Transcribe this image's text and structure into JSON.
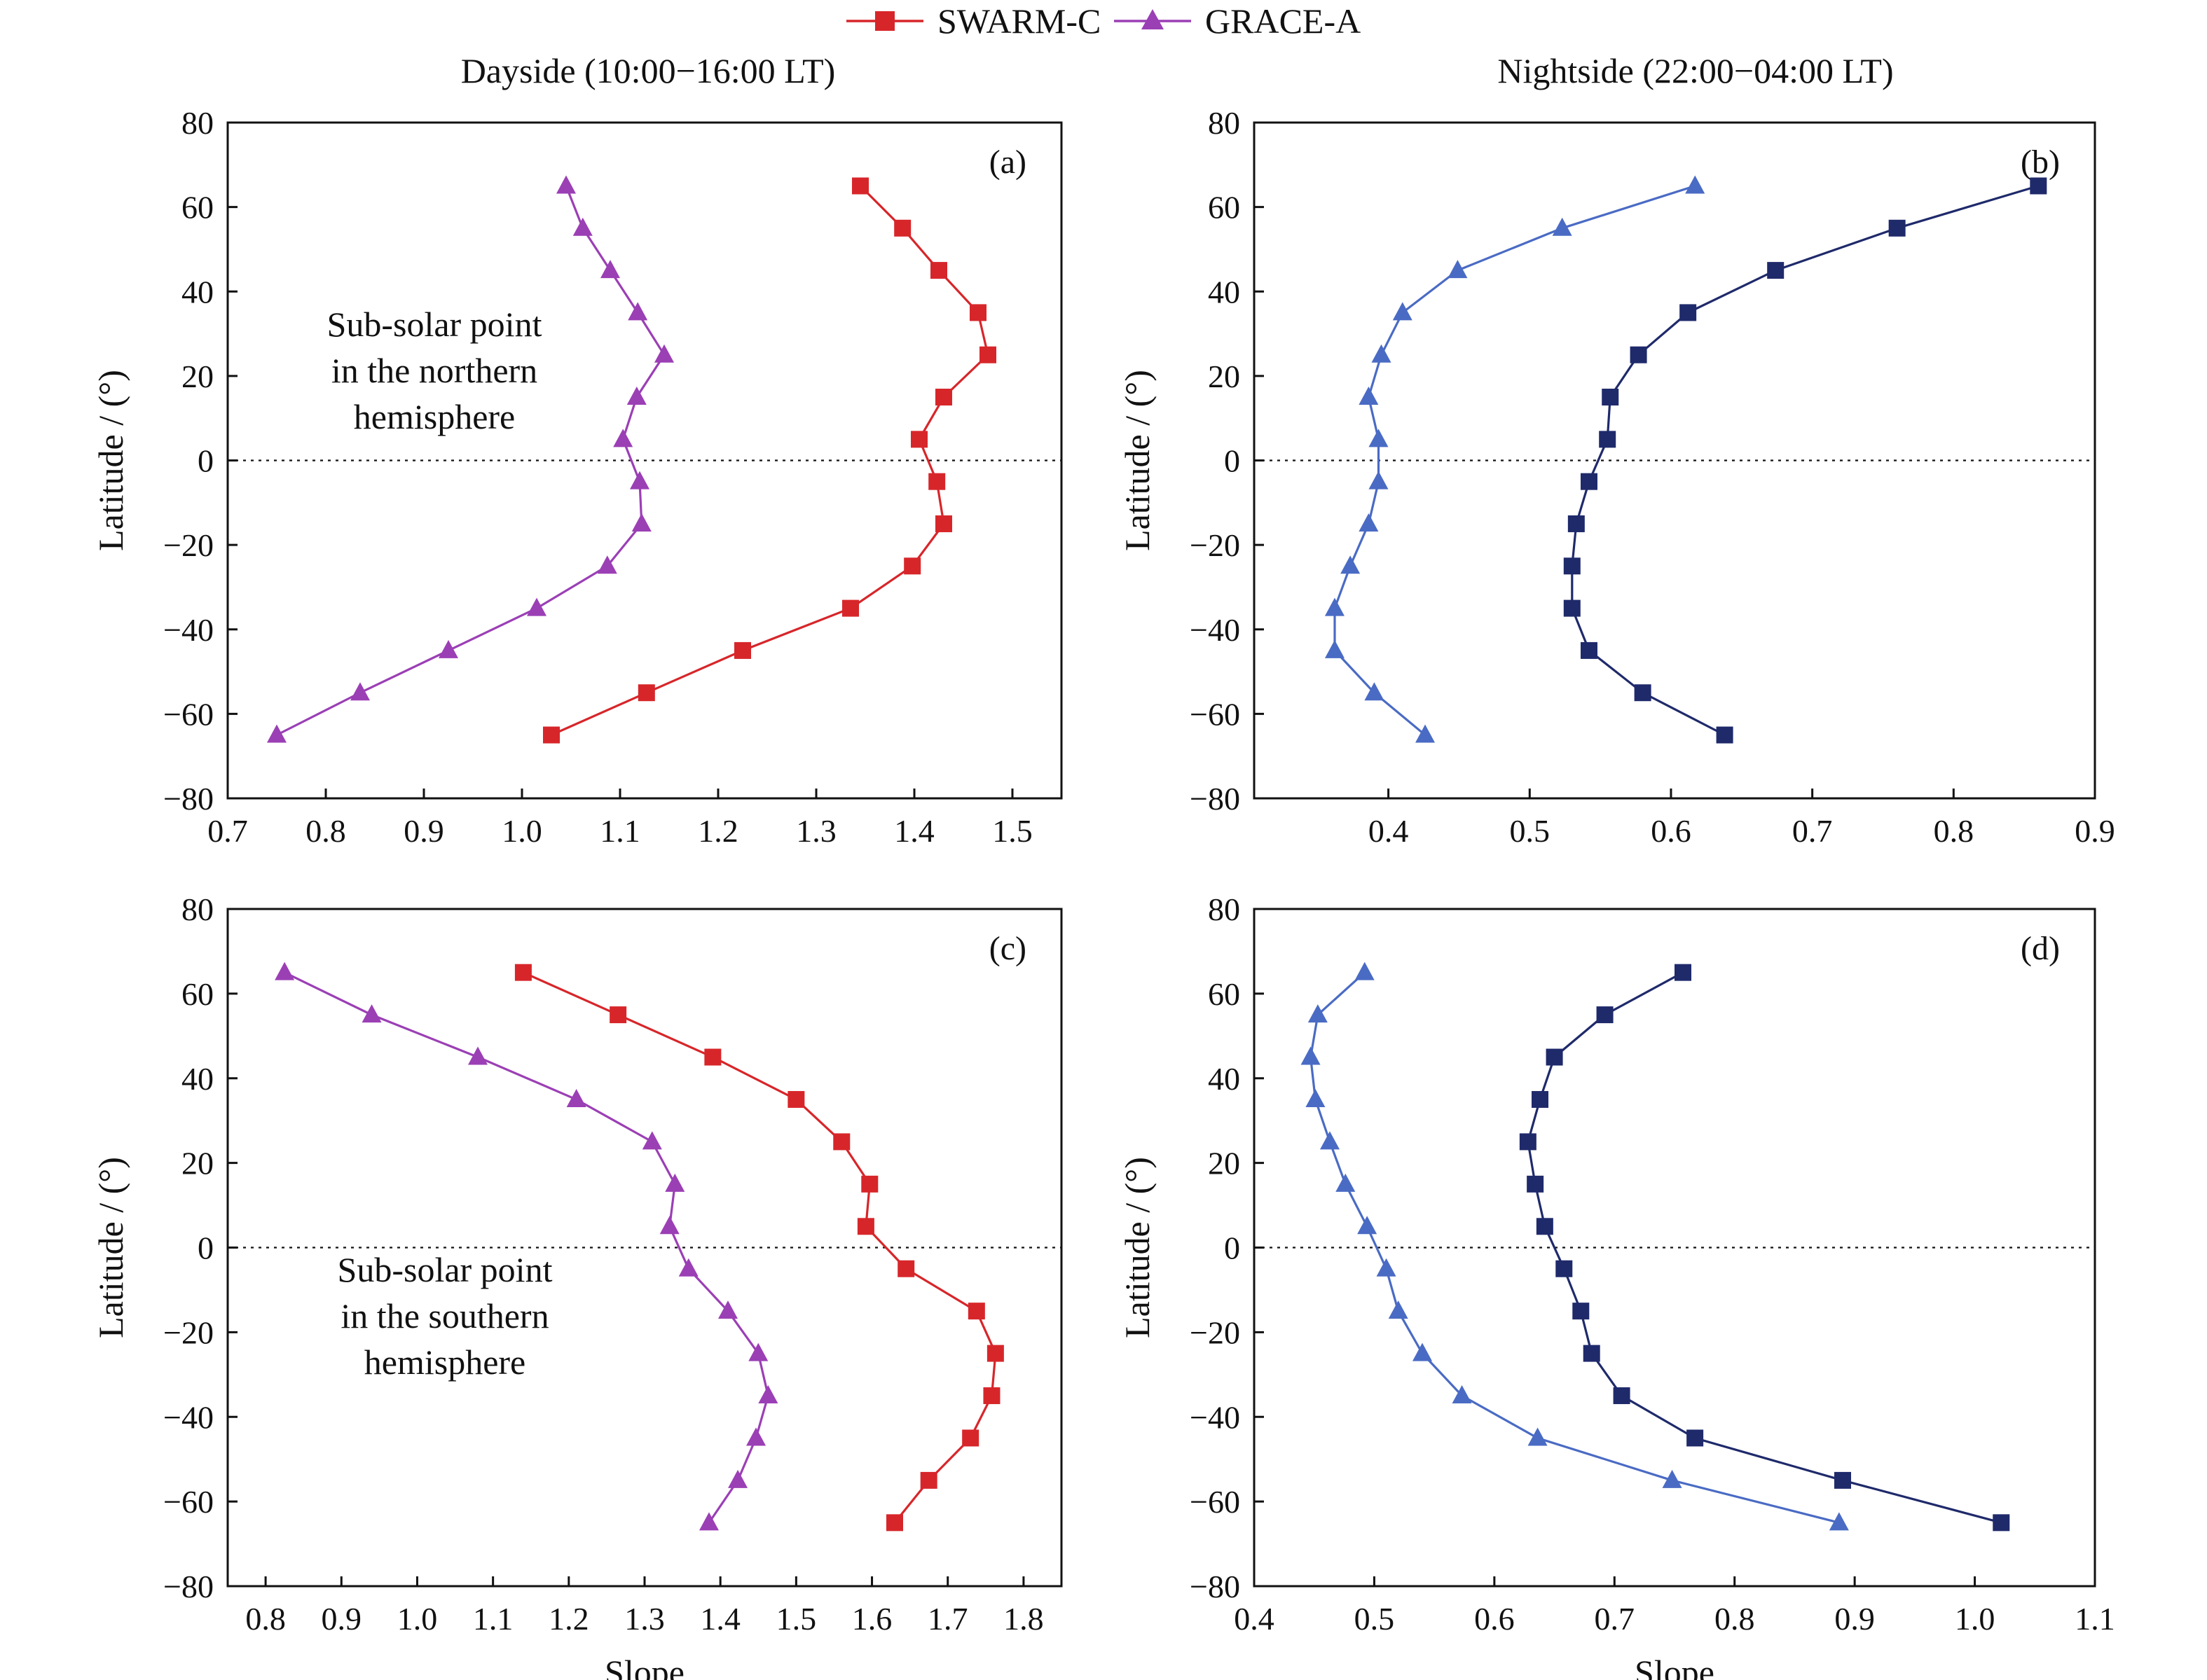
{
  "legend": {
    "items": [
      {
        "label": "SWARM-C",
        "marker": "square",
        "color": "#d7262a"
      },
      {
        "label": "GRACE-A",
        "marker": "triangle",
        "color": "#9b3fb5"
      }
    ]
  },
  "columns": {
    "left": "Dayside (10:00−16:00 LT)",
    "right": "Nightside (22:00−04:00 LT)"
  },
  "chart_data": [
    {
      "id": "a",
      "type": "line",
      "panel_label": "(a)",
      "xlabel": "",
      "ylabel": "Latitude / (°)",
      "xlim": [
        0.7,
        1.55
      ],
      "ylim": [
        -80,
        80
      ],
      "xticks": [
        0.7,
        0.8,
        0.9,
        1.0,
        1.1,
        1.2,
        1.3,
        1.4,
        1.5
      ],
      "xtick_labels": [
        "0.7",
        "0.8",
        "0.9",
        "1.0",
        "1.1",
        "1.2",
        "1.3",
        "1.4",
        "1.5"
      ],
      "yticks": [
        -80,
        -60,
        -40,
        -20,
        0,
        20,
        40,
        60,
        80
      ],
      "ytick_labels": [
        "−80",
        "−60",
        "−40",
        "−20",
        "0",
        "20",
        "40",
        "60",
        "80"
      ],
      "zero_line": true,
      "annotation": [
        "Sub-solar point",
        "in the northern",
        "hemisphere"
      ],
      "series": [
        {
          "label": "SWARM-C",
          "marker": "square",
          "color": "#d7262a",
          "x": [
            1.345,
            1.388,
            1.425,
            1.465,
            1.475,
            1.43,
            1.405,
            1.423,
            1.43,
            1.398,
            1.335,
            1.225,
            1.127,
            1.03
          ],
          "y": [
            65,
            55,
            45,
            35,
            25,
            15,
            5,
            -5,
            -15,
            -25,
            -35,
            -45,
            -55,
            -65
          ]
        },
        {
          "label": "GRACE-A",
          "marker": "triangle",
          "color": "#9b3fb5",
          "x": [
            1.045,
            1.062,
            1.09,
            1.118,
            1.145,
            1.117,
            1.103,
            1.12,
            1.122,
            1.087,
            1.015,
            0.925,
            0.835,
            0.75
          ],
          "y": [
            65,
            55,
            45,
            35,
            25,
            15,
            5,
            -5,
            -15,
            -25,
            -35,
            -45,
            -55,
            -65
          ]
        }
      ]
    },
    {
      "id": "b",
      "type": "line",
      "panel_label": "(b)",
      "xlabel": "",
      "ylabel": "Latitude / (°)",
      "xlim": [
        0.305,
        0.9
      ],
      "ylim": [
        -80,
        80
      ],
      "xticks": [
        0.4,
        0.5,
        0.6,
        0.7,
        0.8,
        0.9
      ],
      "xtick_labels": [
        "0.4",
        "0.5",
        "0.6",
        "0.7",
        "0.8",
        "0.9"
      ],
      "yticks": [
        -80,
        -60,
        -40,
        -20,
        0,
        20,
        40,
        60,
        80
      ],
      "ytick_labels": [
        "−80",
        "−60",
        "−40",
        "−20",
        "0",
        "20",
        "40",
        "60",
        "80"
      ],
      "zero_line": true,
      "series": [
        {
          "label": "SWARM-C",
          "marker": "square",
          "color": "#1f2a6b",
          "x": [
            0.86,
            0.76,
            0.674,
            0.612,
            0.577,
            0.557,
            0.555,
            0.542,
            0.533,
            0.53,
            0.53,
            0.542,
            0.58,
            0.638
          ],
          "y": [
            65,
            55,
            45,
            35,
            25,
            15,
            5,
            -5,
            -15,
            -25,
            -35,
            -45,
            -55,
            -65
          ]
        },
        {
          "label": "GRACE-A",
          "marker": "triangle",
          "color": "#4a6bc4",
          "x": [
            0.617,
            0.523,
            0.449,
            0.41,
            0.395,
            0.386,
            0.393,
            0.393,
            0.386,
            0.373,
            0.362,
            0.362,
            0.39,
            0.426
          ],
          "y": [
            65,
            55,
            45,
            35,
            25,
            15,
            5,
            -5,
            -15,
            -25,
            -35,
            -45,
            -55,
            -65
          ]
        }
      ]
    },
    {
      "id": "c",
      "type": "line",
      "panel_label": "(c)",
      "xlabel": "Slope",
      "ylabel": "Latitude / (°)",
      "xlim": [
        0.75,
        1.85
      ],
      "ylim": [
        -80,
        80
      ],
      "xticks": [
        0.8,
        0.9,
        1.0,
        1.1,
        1.2,
        1.3,
        1.4,
        1.5,
        1.6,
        1.7,
        1.8
      ],
      "xtick_labels": [
        "0.8",
        "0.9",
        "1.0",
        "1.1",
        "1.2",
        "1.3",
        "1.4",
        "1.5",
        "1.6",
        "1.7",
        "1.8"
      ],
      "yticks": [
        -80,
        -60,
        -40,
        -20,
        0,
        20,
        40,
        60,
        80
      ],
      "ytick_labels": [
        "−80",
        "−60",
        "−40",
        "−20",
        "0",
        "20",
        "40",
        "60",
        "80"
      ],
      "zero_line": true,
      "annotation": [
        "Sub-solar point",
        "in the southern",
        "hemisphere"
      ],
      "series": [
        {
          "label": "SWARM-C",
          "marker": "square",
          "color": "#d7262a",
          "x": [
            1.14,
            1.265,
            1.39,
            1.5,
            1.56,
            1.597,
            1.592,
            1.645,
            1.738,
            1.763,
            1.758,
            1.73,
            1.675,
            1.63
          ],
          "y": [
            65,
            55,
            45,
            35,
            25,
            15,
            5,
            -5,
            -15,
            -25,
            -35,
            -45,
            -55,
            -65
          ]
        },
        {
          "label": "GRACE-A",
          "marker": "triangle",
          "color": "#9b3fb5",
          "x": [
            0.825,
            0.94,
            1.08,
            1.21,
            1.31,
            1.34,
            1.333,
            1.358,
            1.41,
            1.45,
            1.463,
            1.447,
            1.423,
            1.385
          ],
          "y": [
            65,
            55,
            45,
            35,
            25,
            15,
            5,
            -5,
            -15,
            -25,
            -35,
            -45,
            -55,
            -65
          ]
        }
      ]
    },
    {
      "id": "d",
      "type": "line",
      "panel_label": "(d)",
      "xlabel": "Slope",
      "ylabel": "Latitude / (°)",
      "xlim": [
        0.4,
        1.1
      ],
      "ylim": [
        -80,
        80
      ],
      "xticks": [
        0.4,
        0.5,
        0.6,
        0.7,
        0.8,
        0.9,
        1.0,
        1.1
      ],
      "xtick_labels": [
        "0.4",
        "0.5",
        "0.6",
        "0.7",
        "0.8",
        "0.9",
        "1.0",
        "1.1"
      ],
      "yticks": [
        -80,
        -60,
        -40,
        -20,
        0,
        20,
        40,
        60,
        80
      ],
      "ytick_labels": [
        "−80",
        "−60",
        "−40",
        "−20",
        "0",
        "20",
        "40",
        "60",
        "80"
      ],
      "zero_line": true,
      "series": [
        {
          "label": "SWARM-C",
          "marker": "square",
          "color": "#1f2a6b",
          "x": [
            0.757,
            0.692,
            0.65,
            0.638,
            0.628,
            0.634,
            0.642,
            0.658,
            0.672,
            0.681,
            0.706,
            0.767,
            0.89,
            1.022
          ],
          "y": [
            65,
            55,
            45,
            35,
            25,
            15,
            5,
            -5,
            -15,
            -25,
            -35,
            -45,
            -55,
            -65
          ]
        },
        {
          "label": "GRACE-A",
          "marker": "triangle",
          "color": "#4a6bc4",
          "x": [
            0.492,
            0.453,
            0.447,
            0.451,
            0.463,
            0.476,
            0.494,
            0.51,
            0.52,
            0.54,
            0.573,
            0.636,
            0.748,
            0.887
          ],
          "y": [
            65,
            55,
            45,
            35,
            25,
            15,
            5,
            -5,
            -15,
            -25,
            -35,
            -45,
            -55,
            -65
          ]
        }
      ]
    }
  ]
}
